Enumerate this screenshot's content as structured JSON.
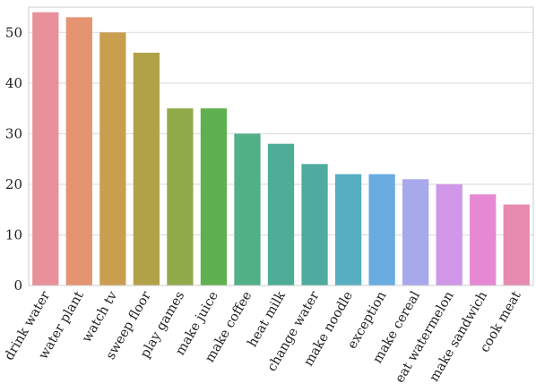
{
  "chart_data": {
    "type": "bar",
    "title": "",
    "xlabel": "",
    "ylabel": "",
    "ylim": [
      0,
      55
    ],
    "yticks": [
      0,
      10,
      20,
      30,
      40,
      50
    ],
    "grid": "horizontal",
    "legend": "none",
    "categories": [
      "drink water",
      "water plant",
      "watch tv",
      "sweep floor",
      "play games",
      "make juice",
      "make coffee",
      "heat milk",
      "change water",
      "make noodle",
      "exception",
      "make cereal",
      "eat watermelon",
      "make sandwich",
      "cook meat"
    ],
    "values": [
      54,
      53,
      50,
      46,
      35,
      35,
      30,
      28,
      24,
      22,
      22,
      21,
      20,
      18,
      16
    ],
    "colors": [
      "#e8919a",
      "#e49470",
      "#c99e4e",
      "#b2a247",
      "#91aa4a",
      "#5fb04f",
      "#52b086",
      "#4ead96",
      "#4fab9f",
      "#55aec2",
      "#68ace0",
      "#a8a8ec",
      "#d097e8",
      "#e688d4",
      "#e68ab0"
    ],
    "grid_color": "#d9d9d9",
    "axis_color": "#cccccc"
  }
}
